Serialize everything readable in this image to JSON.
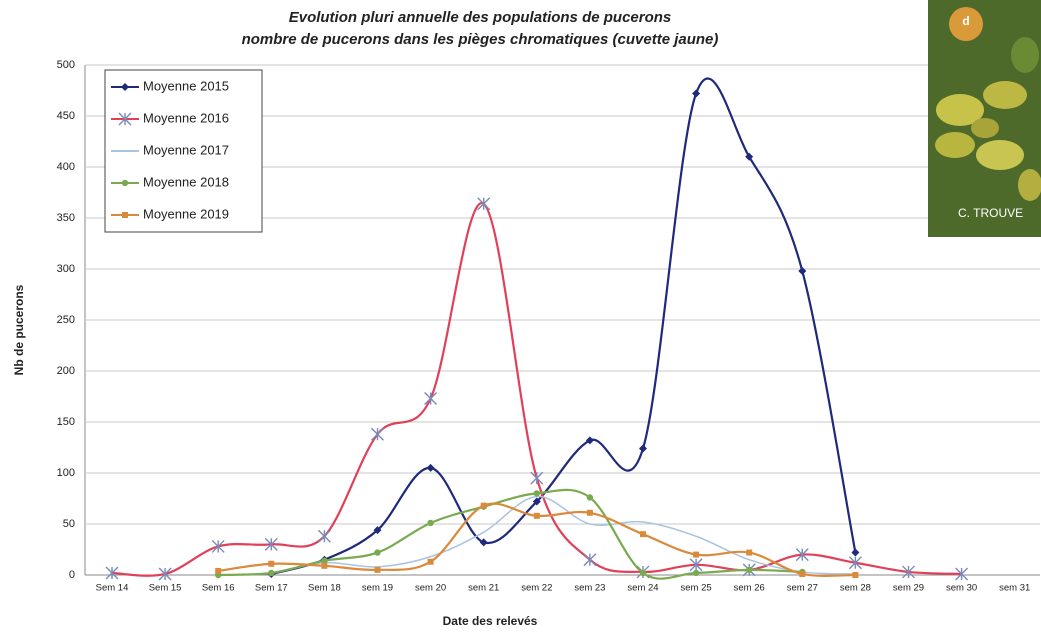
{
  "chart_data": {
    "type": "line",
    "title": "Evolution pluri annuelle des populations de pucerons",
    "subtitle": "nombre de pucerons dans les pièges chromatiques (cuvette jaune)",
    "x_label": "Date des relevés",
    "y_label": "Nb de pucerons",
    "categories": [
      "Sem 14",
      "Sem 15",
      "Sem 16",
      "Sem 17",
      "Sem 18",
      "sem 19",
      "sem 20",
      "sem 21",
      "sem 22",
      "sem 23",
      "sem 24",
      "sem 25",
      "sem 26",
      "sem 27",
      "sem 28",
      "sem 29",
      "sem 30",
      "sem 31"
    ],
    "series": [
      {
        "name": "Moyenne 2015",
        "color": "#1f2a7a",
        "marker": "diamond",
        "values": [
          null,
          null,
          null,
          1,
          15,
          44,
          105,
          32,
          72,
          132,
          124,
          472,
          410,
          298,
          22,
          null,
          null,
          null
        ]
      },
      {
        "name": "Moyenne 2016",
        "color": "#e0405a",
        "marker": "star",
        "values": [
          2,
          1,
          28,
          30,
          38,
          138,
          173,
          364,
          95,
          15,
          3,
          10,
          5,
          20,
          12,
          3,
          1,
          null
        ]
      },
      {
        "name": "Moyenne 2017",
        "color": "#a8c4e0",
        "marker": "none",
        "values": [
          null,
          null,
          0,
          2,
          12,
          8,
          18,
          42,
          77,
          50,
          52,
          38,
          15,
          3,
          1,
          null,
          null,
          null
        ]
      },
      {
        "name": "Moyenne 2018",
        "color": "#7aaa50",
        "marker": "circle",
        "values": [
          null,
          null,
          0,
          2,
          14,
          22,
          51,
          67,
          80,
          76,
          2,
          2,
          5,
          3,
          null,
          null,
          null,
          null
        ]
      },
      {
        "name": "Moyenne 2019",
        "color": "#d98a3a",
        "marker": "square",
        "values": [
          null,
          null,
          4,
          11,
          9,
          5,
          13,
          68,
          58,
          61,
          40,
          20,
          22,
          1,
          0,
          null,
          null,
          null
        ]
      }
    ],
    "ylim": [
      0,
      500
    ],
    "yticks": [
      0,
      50,
      100,
      150,
      200,
      250,
      300,
      350,
      400,
      450,
      500
    ],
    "grid": true,
    "smooth": true,
    "legend": "upper left",
    "annotations": [
      "d",
      "C. TROUVE"
    ]
  }
}
